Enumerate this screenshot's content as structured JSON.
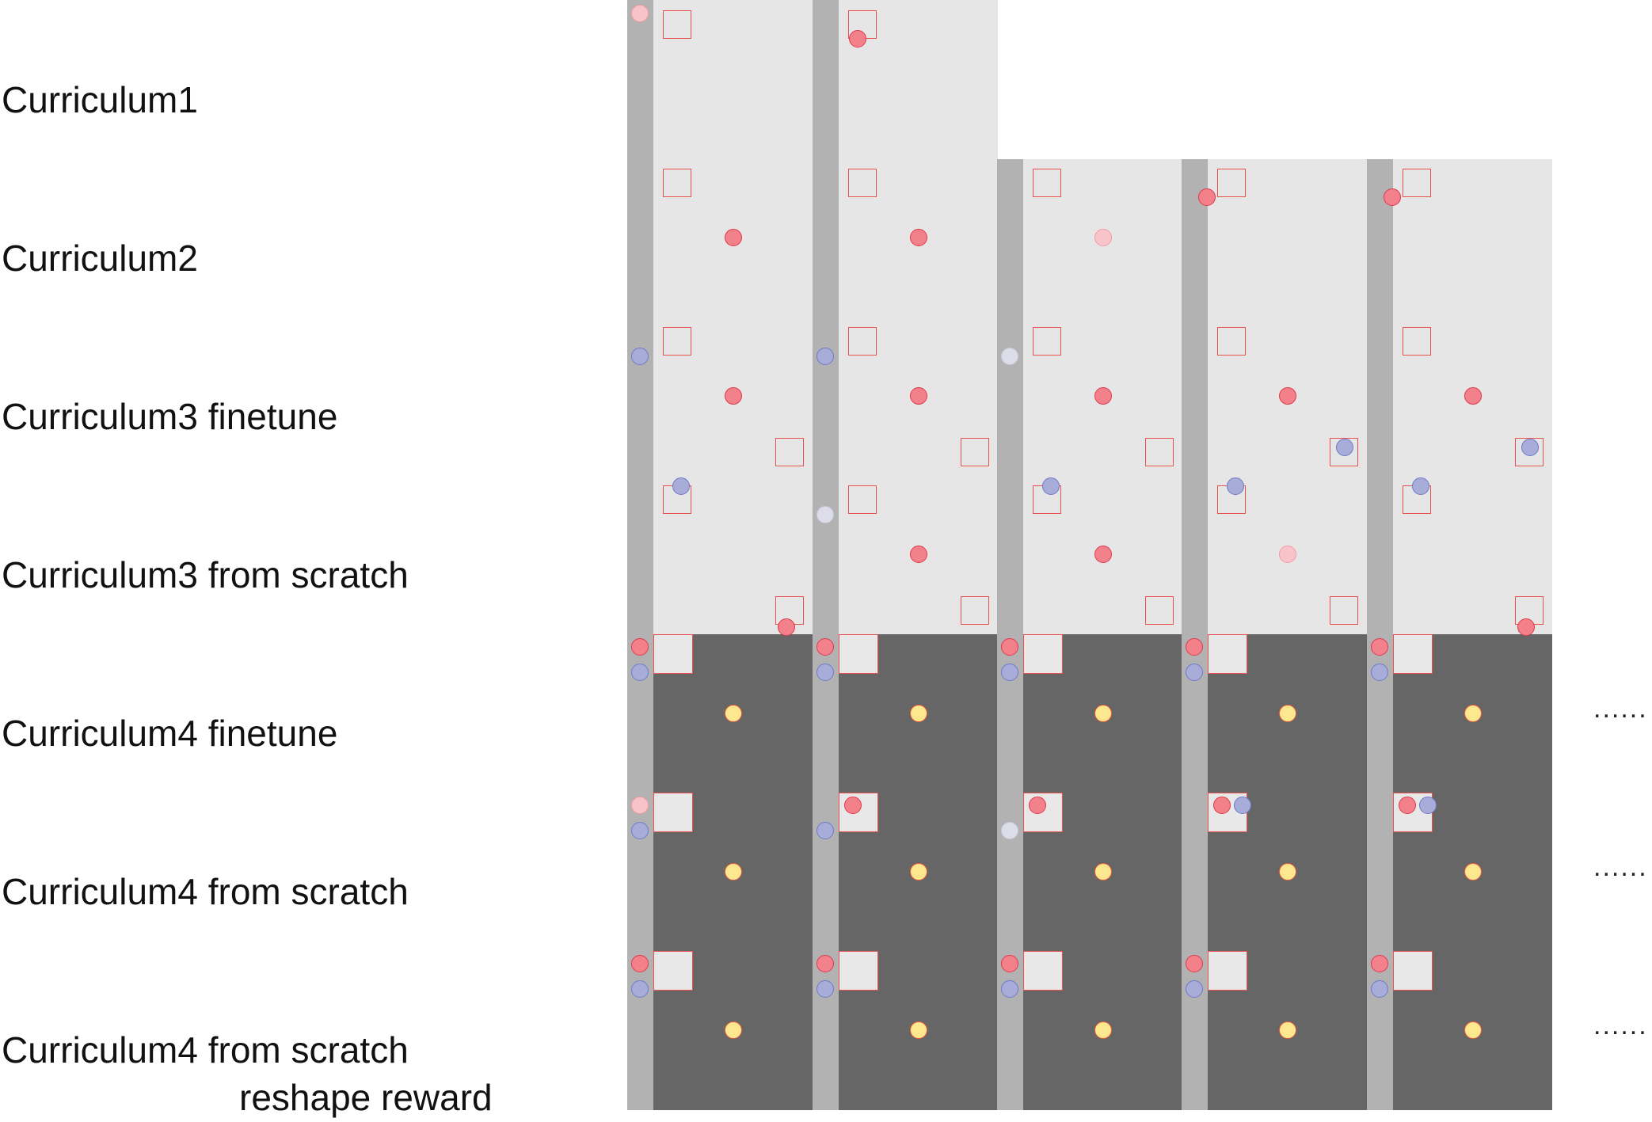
{
  "row_labels": [
    {
      "text": "Curriculum1"
    },
    {
      "text": "Curriculum2"
    },
    {
      "text": "Curriculum3 finetune"
    },
    {
      "text": "Curriculum3 from scratch"
    },
    {
      "text": "Curriculum4 finetune"
    },
    {
      "text": "Curriculum4 from scratch"
    },
    {
      "text": "Curriculum4 from scratch",
      "line2": "reshape reward"
    }
  ],
  "ellipsis": "......",
  "colors": {
    "light_board": "#e6e6e6",
    "dark_board": "#666666",
    "strip": "#b2b2b2",
    "red_marker": "#f2818c",
    "blue_marker": "#a7acd8",
    "yellow_goal": "#fde88f",
    "box_outline": "#e8524f"
  },
  "marker_legend": {
    "square": "box-icon",
    "red_circle": "red-agent-icon",
    "blue_circle": "blue-agent-icon",
    "yellow_circle": "goal-icon"
  }
}
